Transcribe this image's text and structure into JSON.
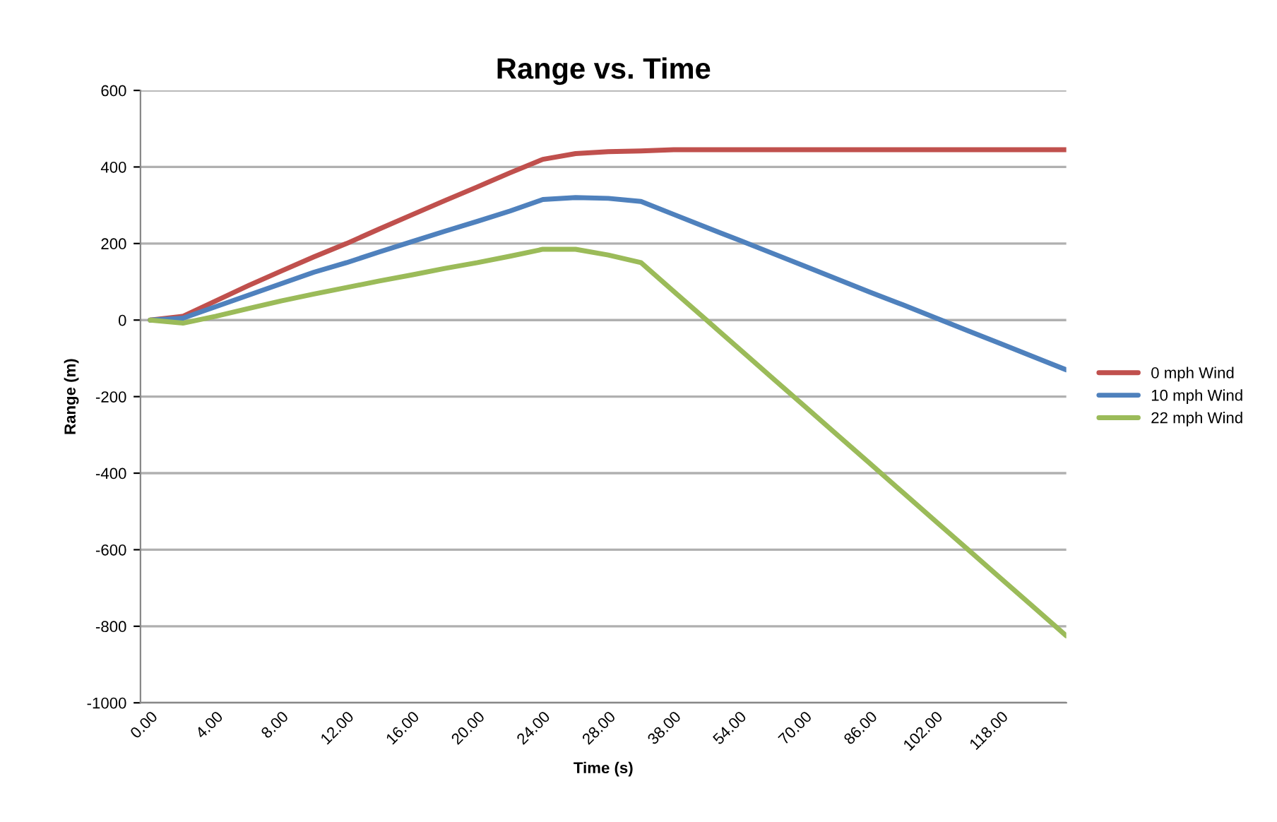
{
  "chart_data": {
    "type": "line",
    "title": "Range vs. Time",
    "xlabel": "Time (s)",
    "ylabel": "Range (m)",
    "categories": [
      "0.00",
      null,
      "4.00",
      null,
      "8.00",
      null,
      "12.00",
      null,
      "16.00",
      null,
      "20.00",
      null,
      "24.00",
      null,
      "28.00",
      null,
      "38.00",
      null,
      "54.00",
      null,
      "70.00",
      null,
      "86.00",
      null,
      "102.00",
      null,
      "118.00",
      null,
      null
    ],
    "series": [
      {
        "name": "0 mph Wind",
        "color": "#c0504d",
        "values": [
          0,
          10,
          50,
          90,
          128,
          165,
          200,
          238,
          275,
          312,
          348,
          385,
          420,
          435,
          440,
          442,
          445,
          445,
          445,
          445,
          445,
          445,
          445,
          445,
          445,
          445,
          445,
          445,
          445
        ]
      },
      {
        "name": "10 mph Wind",
        "color": "#4f81bd",
        "values": [
          0,
          5,
          35,
          65,
          95,
          125,
          150,
          178,
          205,
          232,
          258,
          285,
          315,
          320,
          318,
          310,
          276,
          242,
          209,
          175,
          141,
          107,
          73,
          40,
          6,
          -28,
          -62,
          -96,
          -130
        ]
      },
      {
        "name": "22 mph Wind",
        "color": "#9bbb59",
        "values": [
          0,
          -8,
          10,
          30,
          50,
          68,
          85,
          102,
          118,
          135,
          150,
          167,
          185,
          185,
          170,
          150,
          75,
          0,
          -75,
          -150,
          -225,
          -300,
          -375,
          -450,
          -525,
          -600,
          -675,
          -750,
          -825
        ]
      }
    ],
    "ylim": [
      -1000,
      600
    ],
    "yticks": [
      -1000,
      -800,
      -600,
      -400,
      -200,
      0,
      200,
      400,
      600
    ],
    "grid": "y",
    "legend": "right",
    "marker": "none",
    "line_style": "solid"
  }
}
